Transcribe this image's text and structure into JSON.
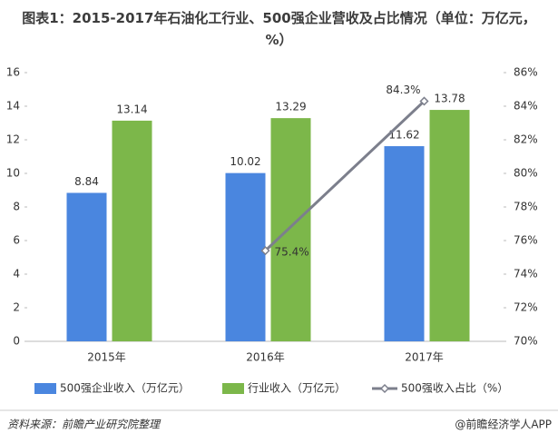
{
  "chart_data": {
    "type": "bar_line",
    "title": "图表1：2015-2017年石油化工行业、500强企业营收及占比情况（单位：万亿元，%）",
    "categories": [
      "2015年",
      "2016年",
      "2017年"
    ],
    "series": [
      {
        "name": "500强企业收入（万亿元）",
        "color": "#4a86df",
        "values": [
          8.84,
          10.02,
          11.62
        ]
      },
      {
        "name": "行业收入（万亿元）",
        "color": "#7cb74a",
        "values": [
          13.14,
          13.29,
          13.78
        ]
      },
      {
        "name": "500强收入占比（%）",
        "color": "#7c7f8c",
        "axis": "y2",
        "values": [
          null,
          75.4,
          84.3
        ],
        "value_labels": [
          null,
          "75.4%",
          "84.3%"
        ]
      }
    ],
    "ylim": [
      0,
      16
    ],
    "yticks": [
      0,
      2,
      4,
      6,
      8,
      10,
      12,
      14,
      16
    ],
    "y2lim": [
      70,
      86
    ],
    "y2ticks": [
      {
        "value": 70,
        "label": "70%"
      },
      {
        "value": 72,
        "label": "72%"
      },
      {
        "value": 74,
        "label": "74%"
      },
      {
        "value": 76,
        "label": "76%"
      },
      {
        "value": 78,
        "label": "78%"
      },
      {
        "value": 80,
        "label": "80%"
      },
      {
        "value": 82,
        "label": "82%"
      },
      {
        "value": 84,
        "label": "84%"
      },
      {
        "value": 86,
        "label": "86%"
      }
    ],
    "source": "资料来源：前瞻产业研究院整理",
    "credit": "@前瞻经济学人APP"
  }
}
